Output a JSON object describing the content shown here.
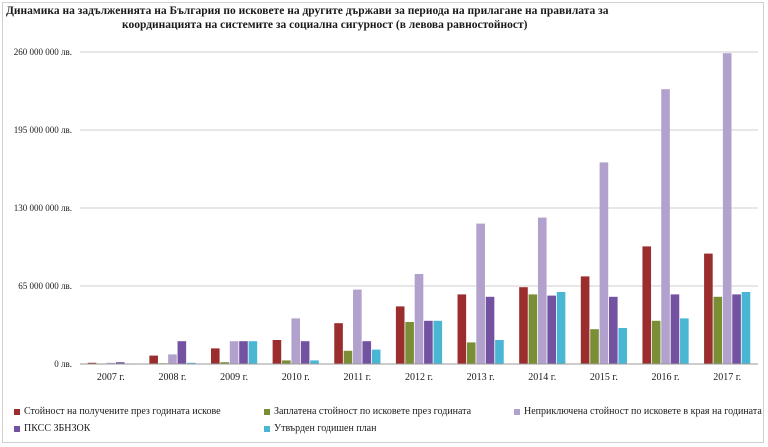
{
  "title_line1": "Динамика на задълженията на България по исковете на другите държави за периода на прилагане на правилата за",
  "title_line2": "координацията на системите за социална сигурност (в левова равностойност)",
  "chart_data": {
    "type": "bar",
    "title": "Динамика на задълженията на България по исковете на другите държави за периода на прилагане на правилата за координацията на системите за социална сигурност (в левова равностойност)",
    "xlabel": "",
    "ylabel": "",
    "ylim": [
      0,
      260000000
    ],
    "yticks": [
      0,
      65000000,
      130000000,
      195000000,
      260000000
    ],
    "ytick_labels": [
      "0 лв.",
      "65 000 000 лв.",
      "130 000 000 лв.",
      "195 000 000 лв.",
      "260 000 000 лв."
    ],
    "grid": true,
    "legend_position": "bottom",
    "categories": [
      "2007 г.",
      "2008 г.",
      "2009 г.",
      "2010 г.",
      "2011 г.",
      "2012 г.",
      "2013 г.",
      "2014 г.",
      "2015 г.",
      "2016 г.",
      "2017 г."
    ],
    "series": [
      {
        "name": "Стойност на получените през годината искове",
        "color": "#9b2d2e",
        "values": [
          1000000,
          7000000,
          13000000,
          20000000,
          34000000,
          48000000,
          58000000,
          64000000,
          73000000,
          98000000,
          92000000
        ]
      },
      {
        "name": "Заплатена стойност по исковете през годината",
        "color": "#7a8f35",
        "values": [
          200000,
          600000,
          1500000,
          3000000,
          11000000,
          35000000,
          18000000,
          58000000,
          29000000,
          36000000,
          56000000
        ]
      },
      {
        "name": "Неприключена стойност по исковете в края на годината",
        "color": "#b2a1cc",
        "values": [
          1000000,
          8000000,
          19000000,
          38000000,
          62000000,
          75000000,
          117000000,
          122000000,
          168000000,
          229000000,
          259000000
        ]
      },
      {
        "name": "ПКСС ЗБНЗОК",
        "color": "#7352a1",
        "values": [
          1500000,
          19000000,
          19000000,
          19000000,
          19000000,
          36000000,
          56000000,
          57000000,
          56000000,
          58000000,
          58000000
        ]
      },
      {
        "name": "Утвърден годишен план",
        "color": "#49b6d4",
        "values": [
          200000,
          1000000,
          19000000,
          3000000,
          12000000,
          36000000,
          20000000,
          60000000,
          30000000,
          38000000,
          60000000
        ]
      }
    ]
  }
}
